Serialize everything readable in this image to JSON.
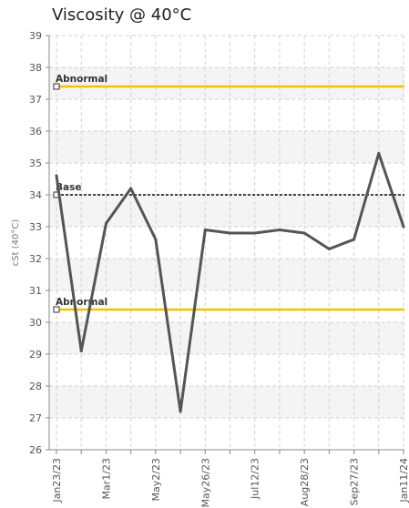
{
  "chart_data": {
    "type": "line",
    "title": "Viscosity @ 40°C",
    "ylabel": "cSt (40°C)",
    "xlabel": "",
    "ylim": [
      26,
      39
    ],
    "yticks": [
      26,
      27,
      28,
      29,
      30,
      31,
      32,
      33,
      34,
      35,
      36,
      37,
      38,
      39
    ],
    "x_tick_labels": [
      "Jan23/23",
      "Mar1/23",
      "May2/23",
      "May26/23",
      "Jul12/23",
      "Aug28/23",
      "Sep27/23",
      "Jan11/24"
    ],
    "grid": true,
    "series": [
      {
        "color": "#555555",
        "x": [
          "Jan23/23",
          "",
          "Mar1/23",
          "",
          "May2/23",
          "",
          "May26/23",
          "",
          "Jul12/23",
          "",
          "Aug28/23",
          "",
          "Sep27/23",
          "",
          "Jan11/24"
        ],
        "values": [
          34.6,
          29.1,
          33.1,
          34.2,
          32.6,
          27.2,
          32.9,
          32.8,
          32.8,
          32.9,
          32.8,
          32.3,
          32.6,
          35.3,
          33.0
        ]
      }
    ],
    "reference_lines": [
      {
        "label": "Abnormal",
        "value": 37.4,
        "color": "#f2c200"
      },
      {
        "label": "Base",
        "value": 34.0,
        "color": "#444444"
      },
      {
        "label": "Abnormal",
        "value": 30.4,
        "color": "#f2c200"
      }
    ]
  }
}
